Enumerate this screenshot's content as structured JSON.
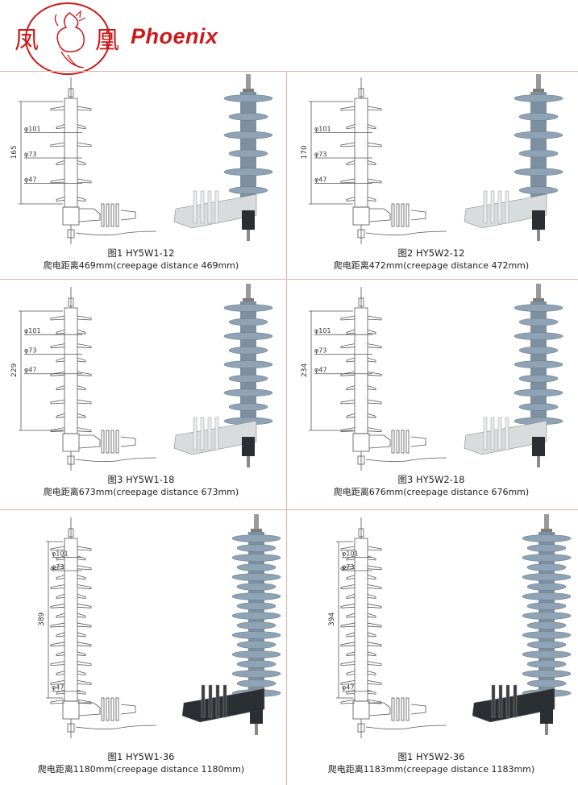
{
  "header": {
    "logo_char_left": "凤",
    "logo_char_right": "凰",
    "brand": "Phoenix",
    "brand_color": "#cc1a1a"
  },
  "panels": [
    {
      "title": "图1 HY5W1-12",
      "creepage": "爬电距离469mm(creepage  distance  469mm)",
      "height_dim": "165",
      "dia1": "φ101",
      "dia2": "φ73",
      "dia3": "φ47",
      "variant": "W1",
      "sheds": 6
    },
    {
      "title": "图2 HY5W2-12",
      "creepage": "爬电距离472mm(creepage  distance  472mm)",
      "height_dim": "170",
      "dia1": "φ101",
      "dia2": "φ73",
      "dia3": "φ47",
      "variant": "W2",
      "sheds": 6
    },
    {
      "title": "图3 HY5W1-18",
      "creepage": "爬电距离673mm(creepage  distance  673mm)",
      "height_dim": "229",
      "dia1": "φ101",
      "dia2": "φ73",
      "dia3": "φ47",
      "variant": "W1",
      "sheds": 9
    },
    {
      "title": "图3 HY5W2-18",
      "creepage": "爬电距离676mm(creepage  distance  676mm)",
      "height_dim": "234",
      "dia1": "φ101",
      "dia2": "φ73",
      "dia3": "φ47",
      "variant": "W2",
      "sheds": 9
    },
    {
      "title": "图1 HY5W1-36",
      "creepage": "爬电距离1180mm(creepage  distance  1180mm)",
      "height_dim": "389",
      "dia1": "φ101",
      "dia2": "φ73",
      "dia3": "φ47",
      "variant": "W1",
      "sheds": 17
    },
    {
      "title": "图1 HY5W2-36",
      "creepage": "爬电距离1183mm(creepage  distance  1183mm)",
      "height_dim": "394",
      "dia1": "φ101",
      "dia2": "φ73",
      "dia3": "φ47",
      "variant": "W2",
      "sheds": 17
    }
  ],
  "colors": {
    "divider": "#e7b3a7",
    "insulator": "#8fa3b4",
    "bracket": "#d9dcdc",
    "dark_bracket": "#2b2e33"
  }
}
